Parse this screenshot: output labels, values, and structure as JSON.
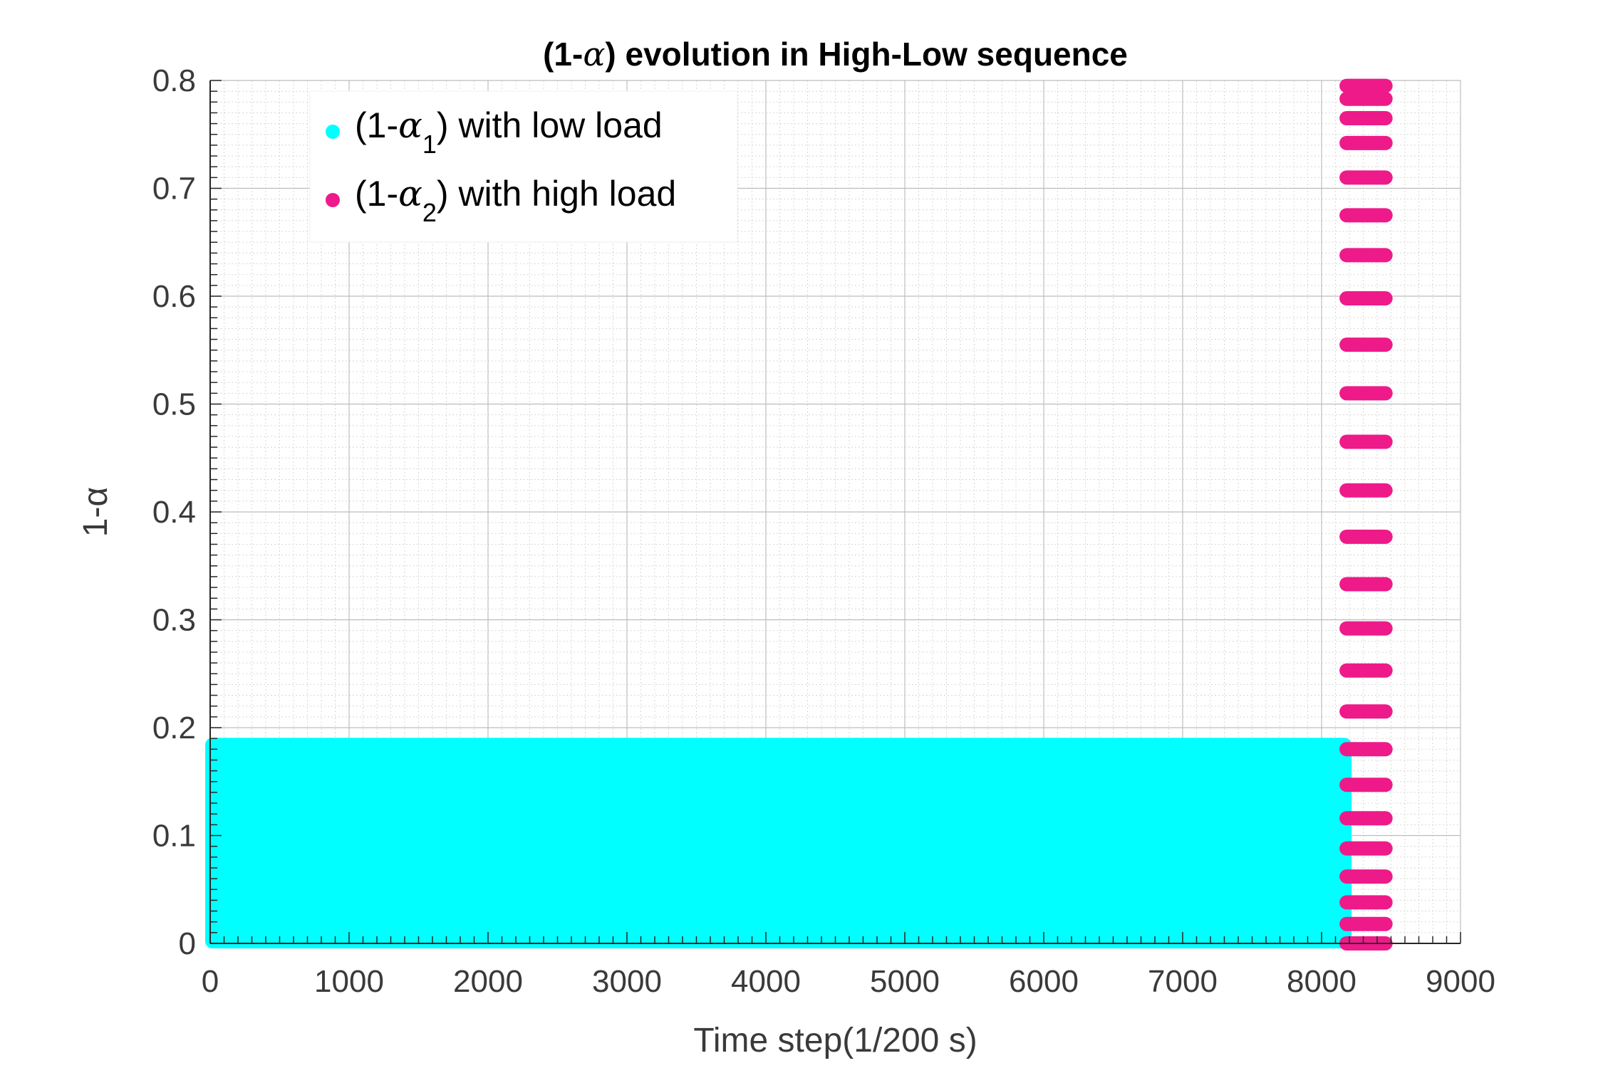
{
  "chart_data": {
    "type": "scatter",
    "title": "(1-α) evolution in High-Low sequence",
    "title_parts": [
      "(1-",
      "α",
      ") evolution in High-Low sequence"
    ],
    "xlabel": "Time step(1/200 s)",
    "ylabel": "1-α",
    "xlim": [
      0,
      9000
    ],
    "ylim": [
      0,
      0.8
    ],
    "xticks": [
      0,
      1000,
      2000,
      3000,
      4000,
      5000,
      6000,
      7000,
      8000,
      9000
    ],
    "yticks": [
      0,
      0.1,
      0.2,
      0.3,
      0.4,
      0.5,
      0.6,
      0.7,
      0.8
    ],
    "xtick_labels": [
      "0",
      "1000",
      "2000",
      "3000",
      "4000",
      "5000",
      "6000",
      "7000",
      "8000",
      "9000"
    ],
    "ytick_labels": [
      "0",
      "0.1",
      "0.2",
      "0.3",
      "0.4",
      "0.5",
      "0.6",
      "0.7",
      "0.8"
    ],
    "grid": true,
    "minor_grid": true,
    "legend_placement": "top-left",
    "series": [
      {
        "legend": {
          "pre": "(1-",
          "greek": "α",
          "sub": "1",
          "post": ") with low load"
        },
        "color": "#00FFFF",
        "x_range": [
          0,
          8180
        ],
        "y_range": [
          0,
          0.186
        ]
      },
      {
        "legend": {
          "pre": "(1-",
          "greek": "α",
          "sub": "2",
          "post": ") with high load"
        },
        "color": "#EE1A8A",
        "x_range": [
          8180,
          8460
        ],
        "y_levels": [
          0.0,
          0.018,
          0.038,
          0.062,
          0.088,
          0.116,
          0.147,
          0.18,
          0.215,
          0.253,
          0.292,
          0.333,
          0.377,
          0.42,
          0.465,
          0.51,
          0.555,
          0.598,
          0.638,
          0.675,
          0.71,
          0.742,
          0.765,
          0.783,
          0.795
        ]
      }
    ]
  }
}
